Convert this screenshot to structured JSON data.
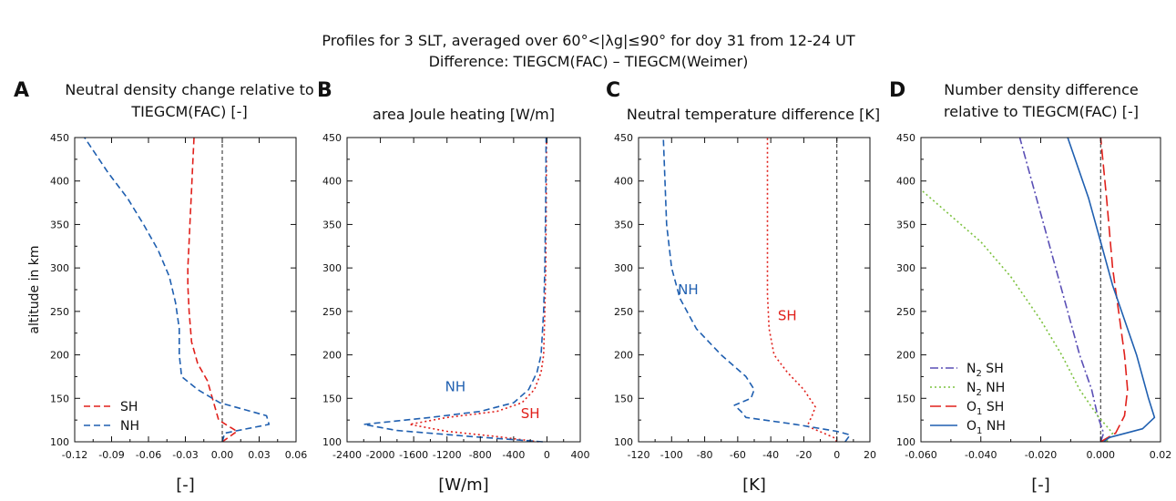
{
  "figure": {
    "title_line1": "Profiles for 3 SLT, averaged over 60°<|λg|≤90° for doy 31 from 12-24 UT",
    "title_line2": "Difference: TIEGCM(FAC) – TIEGCM(Weimer)"
  },
  "colors": {
    "sh": "#e0201b",
    "nh": "#1f5fb0",
    "n2sh": "#5a4fb5",
    "n2nh": "#7cc23f",
    "o1sh": "#e0201b",
    "o1nh": "#1f5fb0"
  },
  "chart_data": [
    {
      "id": "A",
      "type": "line",
      "letter": "A",
      "title": [
        "Neutral density change relative to",
        "TIEGCM(FAC) [-]"
      ],
      "xlabel": "[-]",
      "ylabel": "altitude in km",
      "xlim": [
        -0.12,
        0.06
      ],
      "ylim": [
        100,
        450
      ],
      "xticks": [
        -0.12,
        -0.09,
        -0.06,
        -0.03,
        0.0,
        0.03,
        0.06
      ],
      "xtick_labels": [
        "-0.12",
        "-0.09",
        "-0.06",
        "-0.03",
        "0.00",
        "0.03",
        "0.06"
      ],
      "yticks": [
        100,
        150,
        200,
        250,
        300,
        350,
        400,
        450
      ],
      "ytick_labels": [
        "100",
        "150",
        "200",
        "250",
        "300",
        "350",
        "400",
        "450"
      ],
      "zero_line": 0,
      "legend": {
        "position": "bottom-left",
        "entries": [
          "SH",
          "NH"
        ]
      },
      "series": [
        {
          "name": "SH",
          "color": "#e0201b",
          "dash": "dash",
          "x": [
            0.0,
            0.005,
            0.012,
            0.005,
            -0.003,
            -0.005,
            -0.008,
            -0.012,
            -0.02,
            -0.025,
            -0.027,
            -0.028,
            -0.028,
            -0.027,
            -0.026,
            -0.025,
            -0.024,
            -0.023
          ],
          "y": [
            100,
            105,
            112,
            118,
            125,
            135,
            150,
            170,
            190,
            215,
            250,
            280,
            300,
            330,
            360,
            390,
            420,
            450
          ]
        },
        {
          "name": "NH",
          "color": "#1f5fb0",
          "dash": "dash",
          "x": [
            0.0,
            0.002,
            0.038,
            0.036,
            -0.002,
            -0.02,
            -0.033,
            -0.035,
            -0.035,
            -0.038,
            -0.043,
            -0.052,
            -0.064,
            -0.077,
            -0.093,
            -0.112
          ],
          "y": [
            100,
            110,
            120,
            130,
            145,
            160,
            175,
            200,
            230,
            260,
            290,
            320,
            350,
            380,
            410,
            450
          ]
        }
      ]
    },
    {
      "id": "B",
      "type": "line",
      "letter": "B",
      "title": [
        "area Joule heating [W/m]"
      ],
      "xlabel": "[W/m]",
      "ylabel": "",
      "xlim": [
        -2400,
        400
      ],
      "ylim": [
        100,
        450
      ],
      "xticks": [
        -2400,
        -2000,
        -1600,
        -1200,
        -800,
        -400,
        0,
        400
      ],
      "xtick_labels": [
        "-2400",
        "-2000",
        "-1600",
        "-1200",
        "-800",
        "-400",
        "0",
        "400"
      ],
      "yticks": [
        100,
        150,
        200,
        250,
        300,
        350,
        400,
        450
      ],
      "ytick_labels": [
        "100",
        "150",
        "200",
        "250",
        "300",
        "350",
        "400",
        "450"
      ],
      "annotations": [
        {
          "text": "NH",
          "x": -1100,
          "y": 158,
          "series": "NH"
        },
        {
          "text": "SH",
          "x": -200,
          "y": 127,
          "series": "SH"
        }
      ],
      "series": [
        {
          "name": "SH",
          "color": "#e0201b",
          "dash": "dot",
          "x": [
            -100,
            -600,
            -1200,
            -1650,
            -1200,
            -600,
            -300,
            -150,
            -70,
            -40,
            -25,
            -15,
            -8,
            -5
          ],
          "y": [
            100,
            106,
            112,
            120,
            128,
            135,
            145,
            160,
            180,
            200,
            250,
            300,
            380,
            450
          ]
        },
        {
          "name": "NH",
          "color": "#1f5fb0",
          "dash": "dash",
          "x": [
            -50,
            -900,
            -1800,
            -2200,
            -1400,
            -800,
            -400,
            -220,
            -120,
            -70,
            -40,
            -25,
            -15,
            -10
          ],
          "y": [
            100,
            106,
            113,
            120,
            128,
            135,
            145,
            160,
            180,
            200,
            250,
            300,
            380,
            450
          ]
        }
      ]
    },
    {
      "id": "C",
      "type": "line",
      "letter": "C",
      "title": [
        "Neutral temperature difference [K]"
      ],
      "xlabel": "[K]",
      "ylabel": "",
      "xlim": [
        -120,
        20
      ],
      "ylim": [
        100,
        450
      ],
      "xticks": [
        -120,
        -100,
        -80,
        -60,
        -40,
        -20,
        0,
        20
      ],
      "xtick_labels": [
        "-120",
        "-100",
        "-80",
        "-60",
        "-40",
        "-20",
        "0",
        "20"
      ],
      "yticks": [
        100,
        150,
        200,
        250,
        300,
        350,
        400,
        450
      ],
      "ytick_labels": [
        "100",
        "150",
        "200",
        "250",
        "300",
        "350",
        "400",
        "450"
      ],
      "zero_line": 0,
      "annotations": [
        {
          "text": "NH",
          "x": -90,
          "y": 270,
          "series": "NH"
        },
        {
          "text": "SH",
          "x": -30,
          "y": 240,
          "series": "SH"
        }
      ],
      "series": [
        {
          "name": "SH",
          "color": "#e0201b",
          "dash": "dot",
          "x": [
            0,
            -2,
            -18,
            -15,
            -13,
            -20,
            -30,
            -38,
            -41,
            -42,
            -42,
            -42,
            -42
          ],
          "y": [
            100,
            105,
            118,
            130,
            140,
            160,
            180,
            200,
            230,
            270,
            320,
            400,
            450
          ]
        },
        {
          "name": "NH",
          "color": "#1f5fb0",
          "dash": "dash",
          "x": [
            5,
            8,
            0,
            -25,
            -55,
            -58,
            -62,
            -52,
            -50,
            -55,
            -70,
            -85,
            -95,
            -100,
            -103,
            -104,
            -105
          ],
          "y": [
            100,
            108,
            112,
            120,
            128,
            135,
            142,
            150,
            160,
            175,
            200,
            230,
            265,
            300,
            350,
            400,
            450
          ]
        }
      ]
    },
    {
      "id": "D",
      "type": "line",
      "letter": "D",
      "title": [
        "Number density difference",
        "relative to TIEGCM(FAC) [-]"
      ],
      "xlabel": "[-]",
      "ylabel": "",
      "xlim": [
        -0.06,
        0.02
      ],
      "ylim": [
        100,
        450
      ],
      "xticks": [
        -0.06,
        -0.04,
        -0.02,
        0.0,
        0.02
      ],
      "xtick_labels": [
        "-0.060",
        "-0.040",
        "-0.020",
        "0.000",
        "0.02"
      ],
      "yticks": [
        100,
        150,
        200,
        250,
        300,
        350,
        400,
        450
      ],
      "ytick_labels": [
        "100",
        "150",
        "200",
        "250",
        "300",
        "350",
        "400",
        "450"
      ],
      "zero_line": 0,
      "legend": {
        "position": "bottom-left",
        "entries": [
          "N₂ SH",
          "N₂ NH",
          "O₁ SH",
          "O₁ NH"
        ]
      },
      "series": [
        {
          "name": "N₂ SH",
          "color": "#5a4fb5",
          "dash": "dashdot",
          "x": [
            0.0,
            0.001,
            -0.001,
            -0.003,
            -0.007,
            -0.011,
            -0.015,
            -0.019,
            -0.023,
            -0.027
          ],
          "y": [
            100,
            110,
            130,
            160,
            200,
            250,
            300,
            350,
            400,
            450
          ]
        },
        {
          "name": "N₂ NH",
          "color": "#7cc23f",
          "dash": "dot",
          "x": [
            0.002,
            0.004,
            -0.001,
            -0.007,
            -0.013,
            -0.02,
            -0.03,
            -0.04,
            -0.05,
            -0.06
          ],
          "y": [
            100,
            110,
            130,
            160,
            200,
            240,
            290,
            330,
            360,
            390
          ]
        },
        {
          "name": "O₁ SH",
          "color": "#e0201b",
          "dash": "longdash",
          "x": [
            0.0,
            0.005,
            0.008,
            0.009,
            0.008,
            0.006,
            0.004,
            0.002,
            0.0
          ],
          "y": [
            100,
            110,
            130,
            160,
            200,
            250,
            300,
            380,
            450
          ]
        },
        {
          "name": "O₁ NH",
          "color": "#1f5fb0",
          "dash": "solid",
          "x": [
            0.001,
            0.003,
            0.014,
            0.018,
            0.016,
            0.012,
            0.007,
            0.004,
            0.0,
            -0.004,
            -0.011
          ],
          "y": [
            100,
            105,
            115,
            128,
            150,
            200,
            250,
            280,
            330,
            380,
            450
          ]
        }
      ]
    }
  ]
}
